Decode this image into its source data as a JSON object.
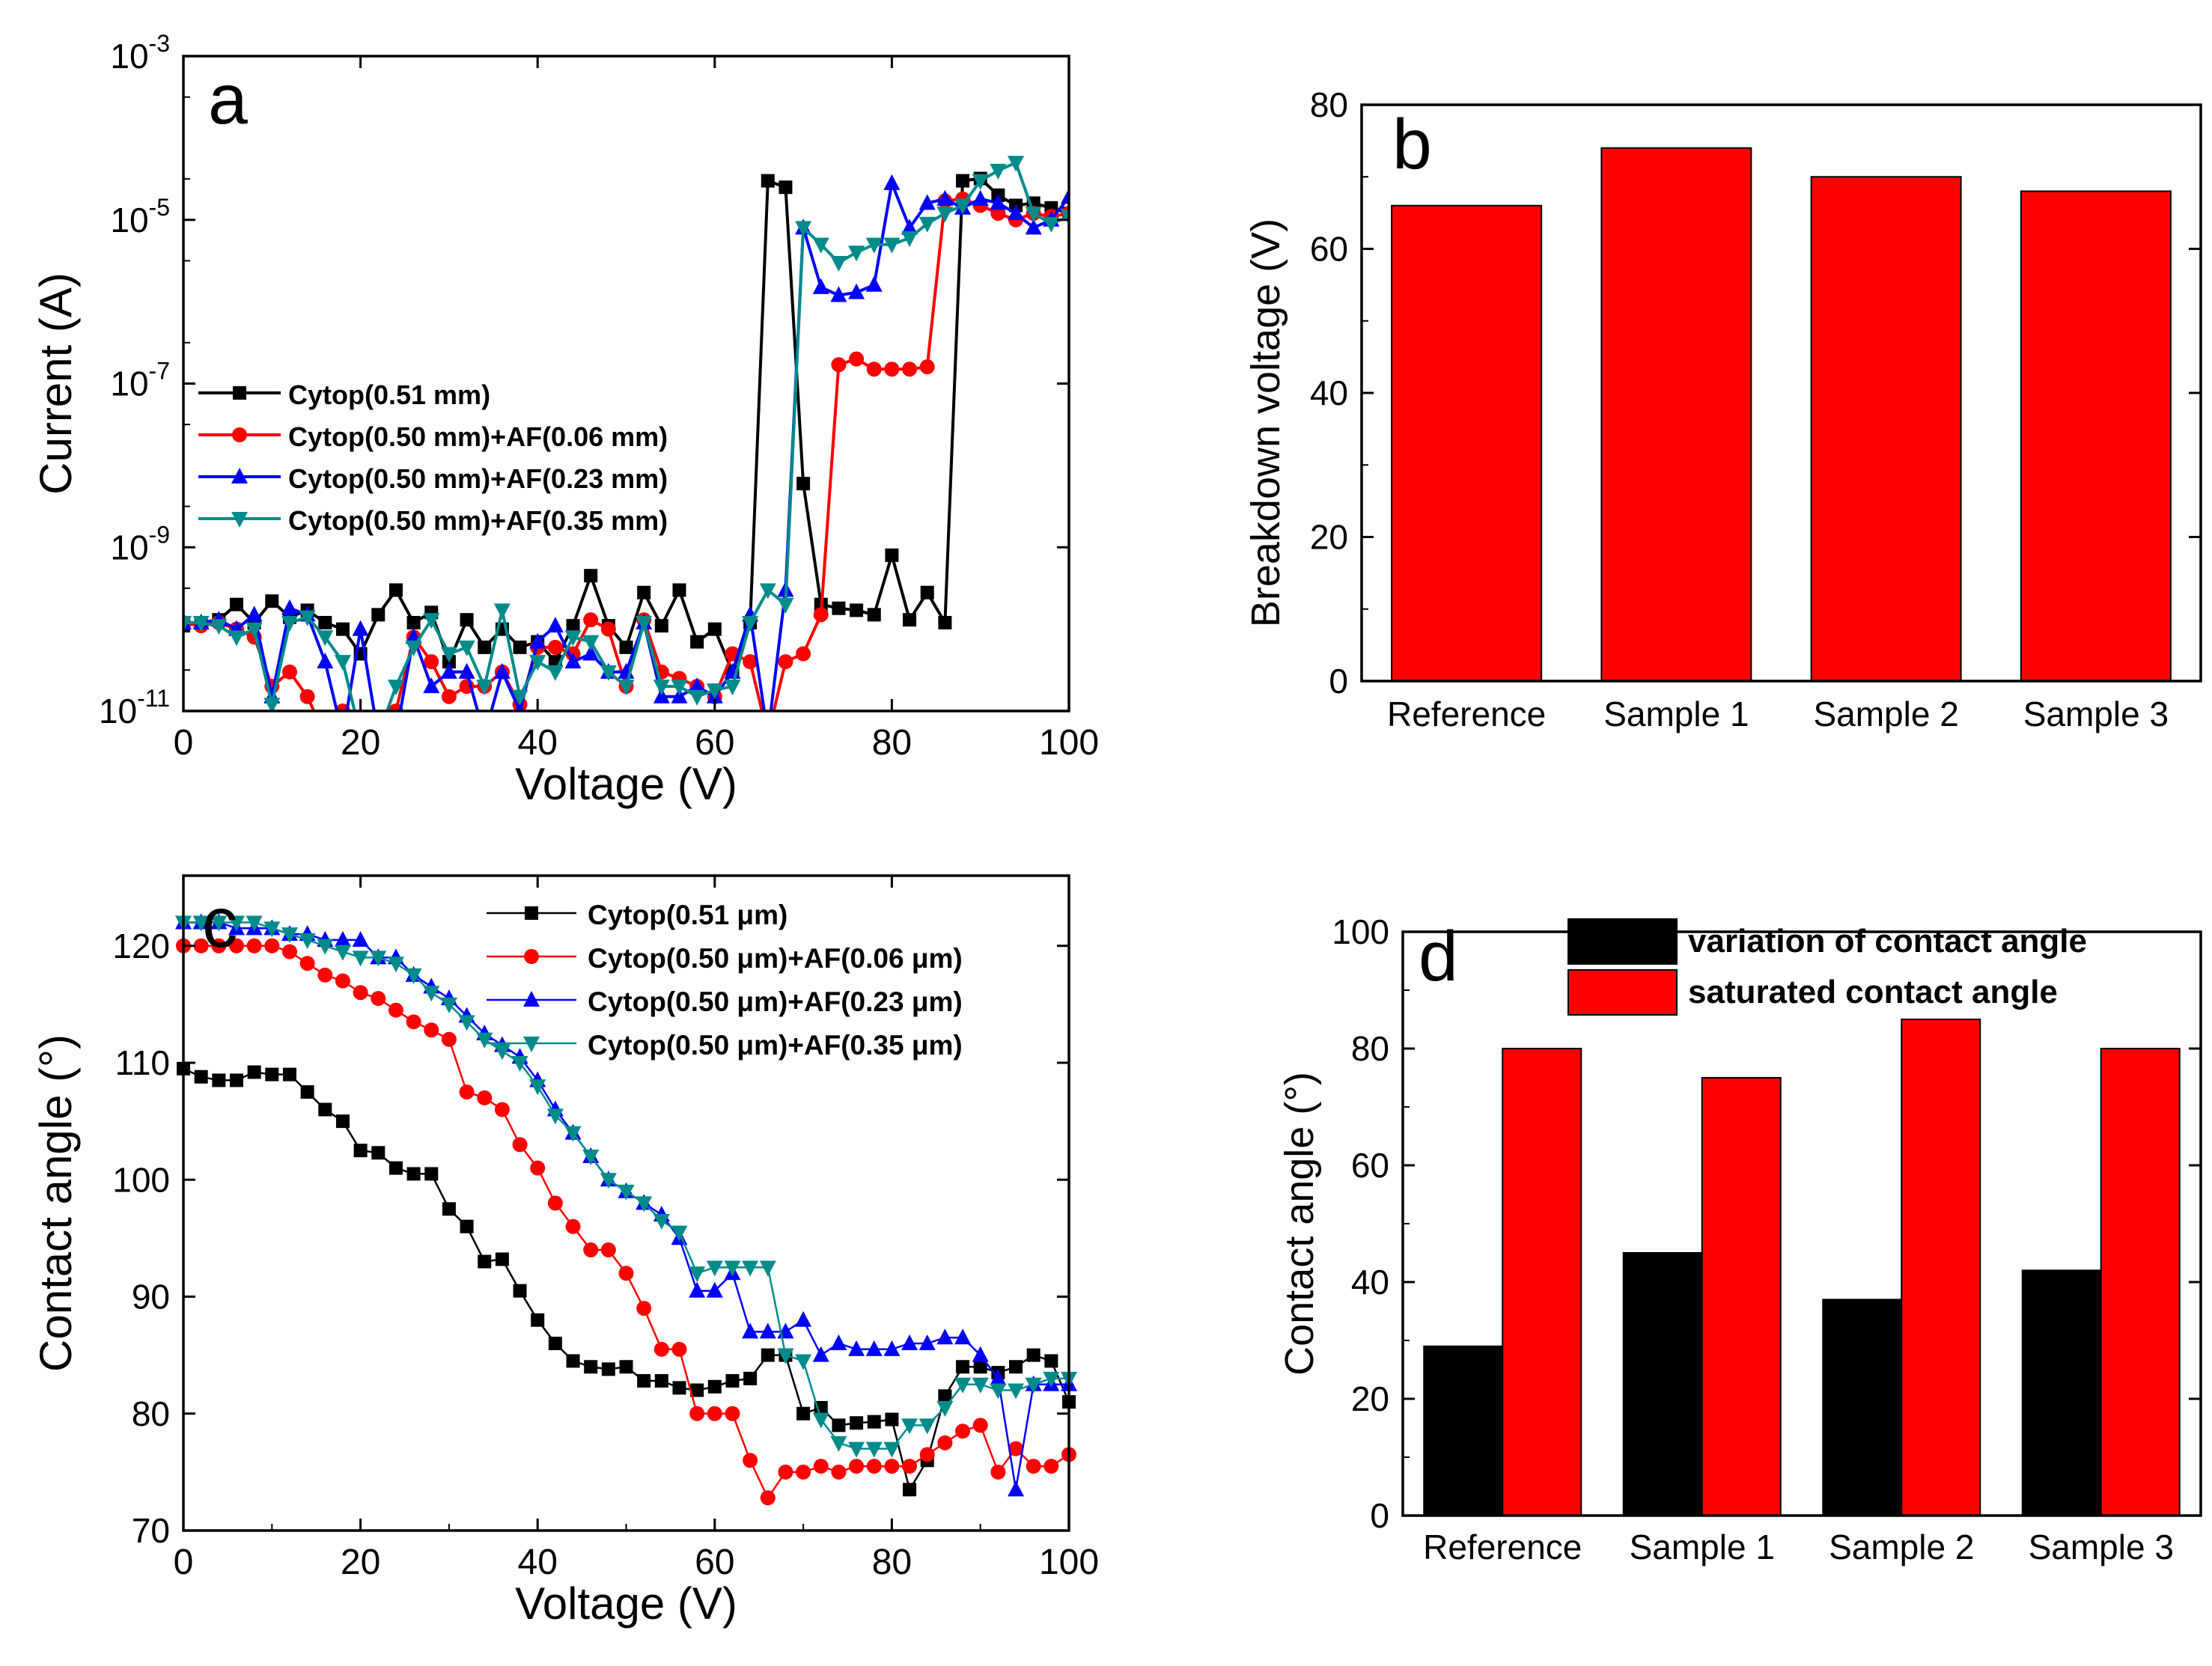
{
  "chart_data": [
    {
      "panel": "a",
      "type": "line",
      "xlabel": "Voltage (V)",
      "ylabel": "Current (A)",
      "xlim": [
        0,
        100
      ],
      "ylim": [
        1e-11,
        0.001
      ],
      "yscale": "log",
      "xticks": [
        "0",
        "20",
        "40",
        "60",
        "80",
        "100"
      ],
      "yticks": [
        {
          "value": 1e-11,
          "base": "10",
          "exp": "-11"
        },
        {
          "value": 1e-09,
          "base": "10",
          "exp": "-9"
        },
        {
          "value": 1e-07,
          "base": "10",
          "exp": "-7"
        },
        {
          "value": 1e-05,
          "base": "10",
          "exp": "-5"
        },
        {
          "value": 0.001,
          "base": "10",
          "exp": "-3"
        }
      ],
      "legend_position": "middle-left",
      "series": [
        {
          "name": "Cytop(0.51 mm)",
          "color": "#000000",
          "marker": "square",
          "x": [
            0,
            2,
            4,
            6,
            8,
            10,
            12,
            14,
            16,
            18,
            20,
            22,
            24,
            26,
            28,
            30,
            32,
            34,
            36,
            38,
            40,
            42,
            44,
            46,
            48,
            50,
            52,
            54,
            56,
            58,
            60,
            62,
            64,
            66,
            68,
            70,
            72,
            74,
            76,
            78,
            80,
            82,
            84,
            86,
            88,
            90,
            92,
            94,
            96,
            98,
            100
          ],
          "y": [
            1.1e-10,
            1.2e-10,
            1.3e-10,
            2e-10,
            1.2e-10,
            2.2e-10,
            1.4e-10,
            1.7e-10,
            1.2e-10,
            1e-10,
            5e-11,
            1.5e-10,
            3e-10,
            1.2e-10,
            1.6e-10,
            4e-11,
            1.3e-10,
            6e-11,
            1e-10,
            6e-11,
            7e-11,
            4e-11,
            1.1e-10,
            4.5e-10,
            1.1e-10,
            6e-11,
            2.8e-10,
            1.1e-10,
            3e-10,
            7e-11,
            1e-10,
            3e-11,
            1.2e-10,
            3e-05,
            2.5e-05,
            6e-09,
            2e-10,
            1.8e-10,
            1.7e-10,
            1.5e-10,
            8e-10,
            1.3e-10,
            2.8e-10,
            1.2e-10,
            3e-05,
            3.2e-05,
            2e-05,
            1.5e-05,
            1.6e-05,
            1.4e-05,
            1.2e-05
          ]
        },
        {
          "name": "Cytop(0.50 mm)+AF(0.06 mm)",
          "color": "#ff0000",
          "marker": "circle",
          "x": [
            0,
            2,
            4,
            6,
            8,
            10,
            12,
            14,
            16,
            18,
            20,
            22,
            24,
            26,
            28,
            30,
            32,
            34,
            36,
            38,
            40,
            42,
            44,
            46,
            48,
            50,
            52,
            54,
            56,
            58,
            60,
            62,
            64,
            66,
            68,
            70,
            72,
            74,
            76,
            78,
            80,
            82,
            84,
            86,
            88,
            90,
            92,
            94,
            96,
            98,
            100
          ],
          "y": [
            1.2e-10,
            1.1e-10,
            1.2e-10,
            1e-10,
            8e-11,
            2e-11,
            3e-11,
            1.5e-11,
            5e-12,
            1e-11,
            5e-12,
            5e-12,
            1e-11,
            8e-11,
            4e-11,
            1.5e-11,
            2e-11,
            2e-11,
            3e-11,
            1.2e-11,
            6e-11,
            6e-11,
            5e-11,
            1.3e-10,
            1e-10,
            2e-11,
            1.3e-10,
            3e-11,
            2.5e-11,
            2e-11,
            1.5e-11,
            5e-11,
            4e-11,
            5e-12,
            4e-11,
            5e-11,
            1.5e-10,
            1.7e-07,
            2e-07,
            1.5e-07,
            1.5e-07,
            1.5e-07,
            1.6e-07,
            1.7e-05,
            1.8e-05,
            1.5e-05,
            1.2e-05,
            1e-05,
            1.2e-05,
            1.1e-05,
            1.2e-05
          ]
        },
        {
          "name": "Cytop(0.50 mm)+AF(0.23 mm)",
          "color": "#0000ff",
          "marker": "triangle-up",
          "x": [
            0,
            2,
            4,
            6,
            8,
            10,
            12,
            14,
            16,
            18,
            20,
            22,
            24,
            26,
            28,
            30,
            32,
            34,
            36,
            38,
            40,
            42,
            44,
            46,
            48,
            50,
            52,
            54,
            56,
            58,
            60,
            62,
            64,
            66,
            68,
            70,
            72,
            74,
            76,
            78,
            80,
            82,
            84,
            86,
            88,
            90,
            92,
            94,
            96,
            98,
            100
          ],
          "y": [
            1.2e-10,
            1.2e-10,
            1.3e-10,
            1e-10,
            1.5e-10,
            1.5e-11,
            1.8e-10,
            1.5e-10,
            4e-11,
            5e-12,
            1e-10,
            5e-12,
            5e-12,
            8e-11,
            2e-11,
            3e-11,
            3e-11,
            5e-12,
            3e-11,
            1e-11,
            7e-11,
            1.1e-10,
            4e-11,
            5e-11,
            3e-11,
            3e-11,
            1.2e-10,
            1.5e-11,
            1.5e-11,
            2e-11,
            1.5e-11,
            3e-11,
            1.5e-10,
            5e-12,
            3e-10,
            8e-06,
            1.5e-06,
            1.2e-06,
            1.3e-06,
            1.6e-06,
            2.8e-05,
            8e-06,
            1.6e-05,
            1.8e-05,
            1.4e-05,
            1.8e-05,
            1.6e-05,
            1.2e-05,
            8e-06,
            1e-05,
            1.9e-05
          ]
        },
        {
          "name": "Cytop(0.50 mm)+AF(0.35 mm)",
          "color": "#008b8b",
          "marker": "triangle-down",
          "x": [
            0,
            2,
            4,
            6,
            8,
            10,
            12,
            14,
            16,
            18,
            20,
            22,
            24,
            26,
            28,
            30,
            32,
            34,
            36,
            38,
            40,
            42,
            44,
            46,
            48,
            50,
            52,
            54,
            56,
            58,
            60,
            62,
            64,
            66,
            68,
            70,
            72,
            74,
            76,
            78,
            80,
            82,
            84,
            86,
            88,
            90,
            92,
            94,
            96,
            98,
            100
          ],
          "y": [
            1.2e-10,
            1.2e-10,
            1.1e-10,
            8e-11,
            1e-10,
            1.2e-11,
            1.2e-10,
            1.4e-10,
            8e-11,
            4e-11,
            5e-12,
            5e-12,
            2e-11,
            6e-11,
            1.3e-10,
            5e-11,
            6e-11,
            2e-11,
            1.7e-10,
            1.5e-11,
            4e-11,
            3e-11,
            8e-11,
            7e-11,
            3e-11,
            2e-11,
            1.2e-10,
            2e-11,
            2e-11,
            1.5e-11,
            1.8e-11,
            2e-11,
            1.2e-10,
            3e-10,
            2e-10,
            8e-06,
            5e-06,
            3e-06,
            4e-06,
            5e-06,
            5e-06,
            6e-06,
            9e-06,
            1.2e-05,
            1.5e-05,
            3e-05,
            4e-05,
            5e-05,
            1.2e-05,
            9e-06,
            1.1e-05
          ]
        }
      ]
    },
    {
      "panel": "b",
      "type": "bar",
      "categories": [
        "Reference",
        "Sample 1",
        "Sample 2",
        "Sample 3"
      ],
      "values": [
        66,
        74,
        70,
        68
      ],
      "color": "#ff0000",
      "ylabel": "Breakdown voltage (V)",
      "ylim": [
        0,
        80
      ],
      "yticks": [
        0,
        20,
        40,
        60,
        80
      ]
    },
    {
      "panel": "c",
      "type": "line",
      "xlabel": "Voltage (V)",
      "ylabel": "Contact angle (°)",
      "xlim": [
        0,
        100
      ],
      "ylim": [
        70,
        126
      ],
      "xticks": [
        0,
        20,
        40,
        60,
        80,
        100
      ],
      "yticks": [
        70,
        80,
        90,
        100,
        110,
        120
      ],
      "legend_position": "top-right",
      "series": [
        {
          "name": "Cytop(0.51 μm)",
          "color": "#000000",
          "marker": "square",
          "x": [
            0,
            2,
            4,
            6,
            8,
            10,
            12,
            14,
            16,
            18,
            20,
            22,
            24,
            26,
            28,
            30,
            32,
            34,
            36,
            38,
            40,
            42,
            44,
            46,
            48,
            50,
            52,
            54,
            56,
            58,
            60,
            62,
            64,
            66,
            68,
            70,
            72,
            74,
            76,
            78,
            80,
            82,
            84,
            86,
            88,
            90,
            92,
            94,
            96,
            98,
            100
          ],
          "y": [
            109.5,
            108.8,
            108.5,
            108.5,
            109.2,
            109,
            109,
            107.5,
            106,
            105,
            102.5,
            102.3,
            101,
            100.5,
            100.5,
            97.5,
            96,
            93,
            93.2,
            90.5,
            88,
            86,
            84.5,
            84,
            83.8,
            84,
            82.8,
            82.8,
            82.2,
            82,
            82.3,
            82.8,
            83,
            85,
            85,
            80,
            80.5,
            79,
            79.2,
            79.3,
            79.5,
            73.5,
            76,
            81.5,
            84,
            84,
            83.5,
            84,
            85,
            84.5,
            81
          ]
        },
        {
          "name": "Cytop(0.50 μm)+AF(0.06 μm)",
          "color": "#ff0000",
          "marker": "circle",
          "x": [
            0,
            2,
            4,
            6,
            8,
            10,
            12,
            14,
            16,
            18,
            20,
            22,
            24,
            26,
            28,
            30,
            32,
            34,
            36,
            38,
            40,
            42,
            44,
            46,
            48,
            50,
            52,
            54,
            56,
            58,
            60,
            62,
            64,
            66,
            68,
            70,
            72,
            74,
            76,
            78,
            80,
            82,
            84,
            86,
            88,
            90,
            92,
            94,
            96,
            98,
            100
          ],
          "y": [
            120,
            120,
            120,
            120,
            120,
            120,
            119.5,
            118.5,
            117.5,
            117,
            116,
            115.5,
            114.5,
            113.5,
            112.8,
            112,
            107.5,
            107,
            106,
            103,
            101,
            98,
            96,
            94,
            94,
            92,
            89,
            85.5,
            85.5,
            80,
            80,
            80,
            76,
            72.8,
            75,
            75,
            75.5,
            75,
            75.5,
            75.5,
            75.5,
            75.5,
            76.5,
            77.5,
            78.5,
            79,
            75,
            77,
            75.5,
            75.5,
            76.5
          ]
        },
        {
          "name": "Cytop(0.50 μm)+AF(0.23 μm)",
          "color": "#0000ff",
          "marker": "triangle-up",
          "x": [
            0,
            2,
            4,
            6,
            8,
            10,
            12,
            14,
            16,
            18,
            20,
            22,
            24,
            26,
            28,
            30,
            32,
            34,
            36,
            38,
            40,
            42,
            44,
            46,
            48,
            50,
            52,
            54,
            56,
            58,
            60,
            62,
            64,
            66,
            68,
            70,
            72,
            74,
            76,
            78,
            80,
            82,
            84,
            86,
            88,
            90,
            92,
            94,
            96,
            98,
            100
          ],
          "y": [
            122,
            122,
            122,
            121.5,
            121.5,
            121.5,
            121,
            121,
            120.5,
            120.5,
            120.5,
            119,
            119,
            117.5,
            116.5,
            115.5,
            114,
            112.5,
            111.5,
            110.5,
            108.5,
            106,
            104,
            102,
            100,
            99,
            98,
            97,
            95,
            90.5,
            90.5,
            92,
            87,
            87,
            87,
            88,
            85,
            86,
            85.5,
            85.5,
            85.5,
            86,
            86,
            86.5,
            86.5,
            85,
            83,
            73.5,
            82.5,
            82.5,
            82.5
          ]
        },
        {
          "name": "Cytop(0.50 μm)+AF(0.35 μm)",
          "color": "#008b8b",
          "marker": "triangle-down",
          "x": [
            0,
            2,
            4,
            6,
            8,
            10,
            12,
            14,
            16,
            18,
            20,
            22,
            24,
            26,
            28,
            30,
            32,
            34,
            36,
            38,
            40,
            42,
            44,
            46,
            48,
            50,
            52,
            54,
            56,
            58,
            60,
            62,
            64,
            66,
            68,
            70,
            72,
            74,
            76,
            78,
            80,
            82,
            84,
            86,
            88,
            90,
            92,
            94,
            96,
            98,
            100
          ],
          "y": [
            122,
            122,
            122,
            122,
            122,
            121.5,
            121,
            120.5,
            120,
            119.5,
            119,
            119,
            118.5,
            117.5,
            116,
            115,
            113.5,
            112,
            111,
            110,
            108,
            105.5,
            104,
            102,
            100,
            99,
            98,
            96.5,
            95.5,
            92,
            92.5,
            92.5,
            92.5,
            92.5,
            85,
            84.5,
            79.5,
            77.5,
            77,
            77,
            77,
            79,
            79,
            80.5,
            82.5,
            82.5,
            82,
            82,
            82.5,
            83,
            83
          ]
        }
      ]
    },
    {
      "panel": "d",
      "type": "bar",
      "categories": [
        "Reference",
        "Sample 1",
        "Sample 2",
        "Sample 3"
      ],
      "series": [
        {
          "name": "variation of contact angle",
          "color": "#000000",
          "values": [
            29,
            45,
            37,
            42
          ]
        },
        {
          "name": "saturated contact angle",
          "color": "#ff0000",
          "values": [
            80,
            75,
            85,
            80
          ]
        }
      ],
      "ylabel": "Contact angle (°)",
      "ylim": [
        0,
        100
      ],
      "yticks": [
        0,
        20,
        40,
        60,
        80,
        100
      ],
      "legend_position": "top-right"
    }
  ]
}
